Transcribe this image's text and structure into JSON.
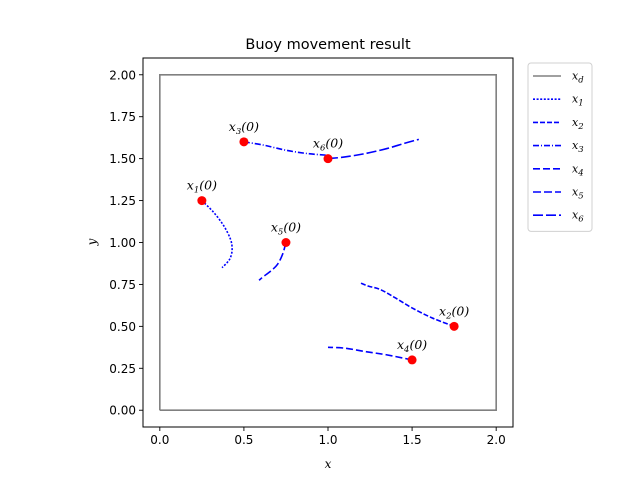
{
  "chart_data": {
    "type": "line",
    "title": "Buoy movement result",
    "xlabel": "x",
    "ylabel": "y",
    "xlim": [
      -0.1,
      2.1
    ],
    "ylim": [
      -0.1,
      2.1
    ],
    "xticks": [
      "0.0",
      "0.5",
      "1.0",
      "1.5",
      "2.0"
    ],
    "yticks": [
      "0.00",
      "0.25",
      "0.50",
      "0.75",
      "1.00",
      "1.25",
      "1.50",
      "1.75",
      "2.00"
    ],
    "grid": false,
    "legend_position": "outside-right",
    "desired_region": {
      "name_base": "x",
      "name_sub": "d",
      "color": "#808080",
      "x": [
        0,
        2,
        2,
        0,
        0
      ],
      "y": [
        0,
        0,
        2,
        2,
        0
      ]
    },
    "series": [
      {
        "name_base": "x",
        "name_sub": "1",
        "start_base": "x",
        "start_sub": "1",
        "start_suffix": "(0)",
        "color": "#0000ff",
        "dash": "2,1.6",
        "x": [
          0.25,
          0.32,
          0.38,
          0.42,
          0.43,
          0.42,
          0.4,
          0.37
        ],
        "y": [
          1.25,
          1.18,
          1.1,
          1.02,
          0.96,
          0.91,
          0.88,
          0.85
        ]
      },
      {
        "name_base": "x",
        "name_sub": "2",
        "start_base": "x",
        "start_sub": "2",
        "start_suffix": "(0)",
        "color": "#0000ff",
        "dash": "5,2",
        "x": [
          1.75,
          1.62,
          1.5,
          1.4,
          1.31,
          1.24,
          1.19
        ],
        "y": [
          0.5,
          0.55,
          0.61,
          0.67,
          0.72,
          0.74,
          0.76
        ]
      },
      {
        "name_base": "x",
        "name_sub": "3",
        "start_base": "x",
        "start_sub": "3",
        "start_suffix": "(0)",
        "color": "#0000ff",
        "dash": "6,2,1,2",
        "x": [
          0.5,
          0.62,
          0.75,
          0.88,
          1.0
        ],
        "y": [
          1.6,
          1.58,
          1.55,
          1.53,
          1.52
        ]
      },
      {
        "name_base": "x",
        "name_sub": "4",
        "start_base": "x",
        "start_sub": "4",
        "start_suffix": "(0)",
        "color": "#0000ff",
        "dash": "7,3",
        "x": [
          1.5,
          1.35,
          1.22,
          1.1,
          1.0
        ],
        "y": [
          0.3,
          0.33,
          0.35,
          0.37,
          0.375
        ]
      },
      {
        "name_base": "x",
        "name_sub": "5",
        "start_base": "x",
        "start_sub": "5",
        "start_suffix": "(0)",
        "color": "#0000ff",
        "dash": "8,3",
        "x": [
          0.75,
          0.73,
          0.7,
          0.66,
          0.62,
          0.59
        ],
        "y": [
          1.0,
          0.93,
          0.87,
          0.83,
          0.8,
          0.775
        ]
      },
      {
        "name_base": "x",
        "name_sub": "6",
        "start_base": "x",
        "start_sub": "6",
        "start_suffix": "(0)",
        "color": "#0000ff",
        "dash": "10,3",
        "x": [
          1.0,
          1.1,
          1.22,
          1.35,
          1.45,
          1.54
        ],
        "y": [
          1.5,
          1.51,
          1.53,
          1.56,
          1.59,
          1.615
        ]
      }
    ],
    "start_marker_color": "#ff0000"
  }
}
